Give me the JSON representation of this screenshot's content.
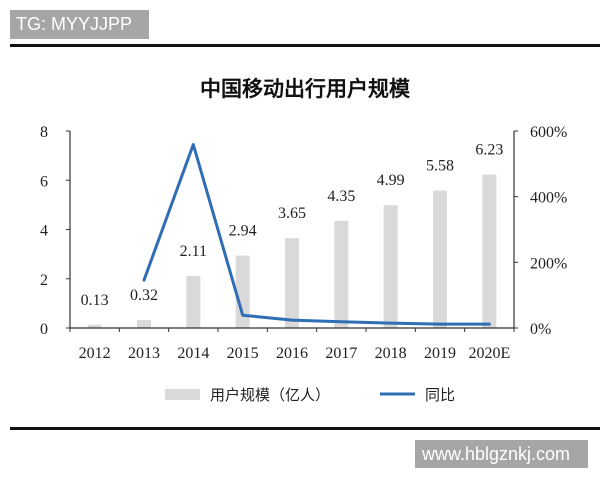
{
  "watermarks": {
    "top": "TG: MYYJJPP",
    "bottom": "www.hblgznkj.com"
  },
  "colors": {
    "watermark_bg": "#a6a6a6",
    "watermark_text": "#ffffff",
    "rule": "#111111",
    "bar": "#d9d9d9",
    "line": "#2f6db5",
    "axis": "#333333"
  },
  "chart_data": {
    "type": "bar",
    "title": "中国移动出行用户规模",
    "categories": [
      "2012",
      "2013",
      "2014",
      "2015",
      "2016",
      "2017",
      "2018",
      "2019",
      "2020E"
    ],
    "series": [
      {
        "name": "用户规模（亿人）",
        "type": "bar",
        "axis": "left",
        "values": [
          0.13,
          0.32,
          2.11,
          2.94,
          3.65,
          4.35,
          4.99,
          5.58,
          6.23
        ],
        "data_labels": true
      },
      {
        "name": "同比",
        "type": "line",
        "axis": "right",
        "values": [
          null,
          146,
          559,
          39,
          24,
          19,
          15,
          12,
          12
        ]
      }
    ],
    "y_left": {
      "ylim": [
        0,
        8
      ],
      "ticks": [
        "0",
        "2",
        "4",
        "6",
        "8"
      ]
    },
    "y_right": {
      "ylim": [
        0,
        600
      ],
      "ticks": [
        "0%",
        "200%",
        "400%",
        "600%"
      ]
    },
    "grid": false,
    "legend": "bottom-center"
  }
}
